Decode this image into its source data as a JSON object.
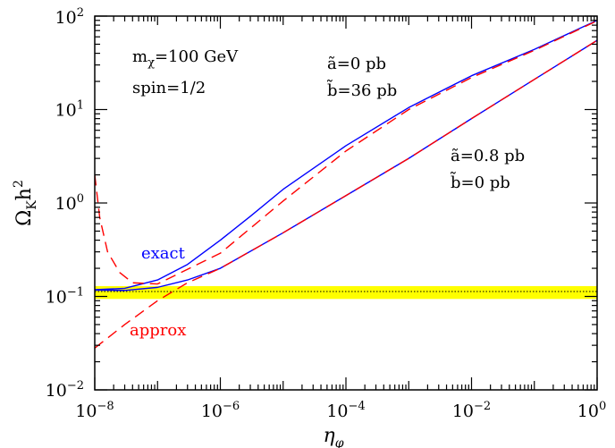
{
  "chart_data": {
    "type": "line",
    "xscale": "log",
    "yscale": "log",
    "xlim": [
      1e-08,
      1
    ],
    "ylim": [
      0.01,
      100
    ],
    "grid": false,
    "xlabel": {
      "main": "η",
      "sub": "φ"
    },
    "ylabel": {
      "main": "Ω",
      "sub": "K",
      "after": "h",
      "sup": "2"
    },
    "x_ticks": [
      {
        "base": "10",
        "exp": "−8"
      },
      {
        "base": "10",
        "exp": "−6"
      },
      {
        "base": "10",
        "exp": "−4"
      },
      {
        "base": "10",
        "exp": "−2"
      },
      {
        "base": "10",
        "exp": "0"
      }
    ],
    "y_ticks": [
      {
        "base": "10",
        "exp": "−2"
      },
      {
        "base": "10",
        "exp": "−1"
      },
      {
        "base": "10",
        "exp": "0"
      },
      {
        "base": "10",
        "exp": "1"
      },
      {
        "base": "10",
        "exp": "2"
      }
    ],
    "band": {
      "color": "#ffff00",
      "y_range": [
        0.094,
        0.129
      ],
      "line_y": 0.113
    },
    "series": [
      {
        "name": "exact",
        "curve": "upper",
        "style": "solid",
        "color": "#0000ff",
        "x": [
          1e-08,
          3e-08,
          1e-07,
          3e-07,
          1e-06,
          3e-06,
          1e-05,
          0.0001,
          0.001,
          0.01,
          0.1,
          1
        ],
        "y": [
          0.118,
          0.122,
          0.15,
          0.22,
          0.4,
          0.72,
          1.4,
          4.1,
          10.5,
          23,
          44,
          90
        ]
      },
      {
        "name": "exact",
        "curve": "lower",
        "style": "solid",
        "color": "#0000ff",
        "x": [
          1e-08,
          3e-08,
          1e-07,
          3e-07,
          1e-06,
          1e-05,
          0.0001,
          0.001,
          0.01,
          0.1,
          1
        ],
        "y": [
          0.117,
          0.116,
          0.125,
          0.15,
          0.2,
          0.48,
          1.2,
          3.0,
          8.0,
          21,
          55
        ]
      },
      {
        "name": "approx",
        "curve": "upper",
        "style": "dashed",
        "color": "#ff0000",
        "x": [
          1e-08,
          1.2e-08,
          1.6e-08,
          2.5e-08,
          4e-08,
          6e-08,
          1e-07,
          1e-06,
          1e-05,
          0.0001,
          0.001,
          0.01,
          0.1,
          1
        ],
        "y": [
          2.0,
          0.7,
          0.3,
          0.18,
          0.14,
          0.138,
          0.136,
          0.29,
          1.05,
          3.6,
          10,
          22,
          43,
          89
        ]
      },
      {
        "name": "approx",
        "curve": "lower",
        "style": "dashed",
        "color": "#ff0000",
        "x": [
          1e-08,
          3e-08,
          1e-07,
          3e-07,
          1e-06,
          1e-05,
          0.0001,
          0.001,
          0.01,
          0.1,
          1
        ],
        "y": [
          0.028,
          0.05,
          0.09,
          0.14,
          0.2,
          0.48,
          1.2,
          3.0,
          8.0,
          21,
          55
        ]
      }
    ],
    "annotations": {
      "mass_main": "m",
      "mass_sub": "χ",
      "mass_val": "=100 GeV",
      "spin": "spin=1/2",
      "set1_a": "ã=0 pb",
      "set1_b": "b̃=36 pb",
      "set2_a": "ã=0.8 pb",
      "set2_b": "b̃=0 pb",
      "label_exact": "exact",
      "label_approx": "approx"
    },
    "colors": {
      "exact": "#0000ff",
      "approx": "#ff0000",
      "band": "#ffff00"
    }
  }
}
